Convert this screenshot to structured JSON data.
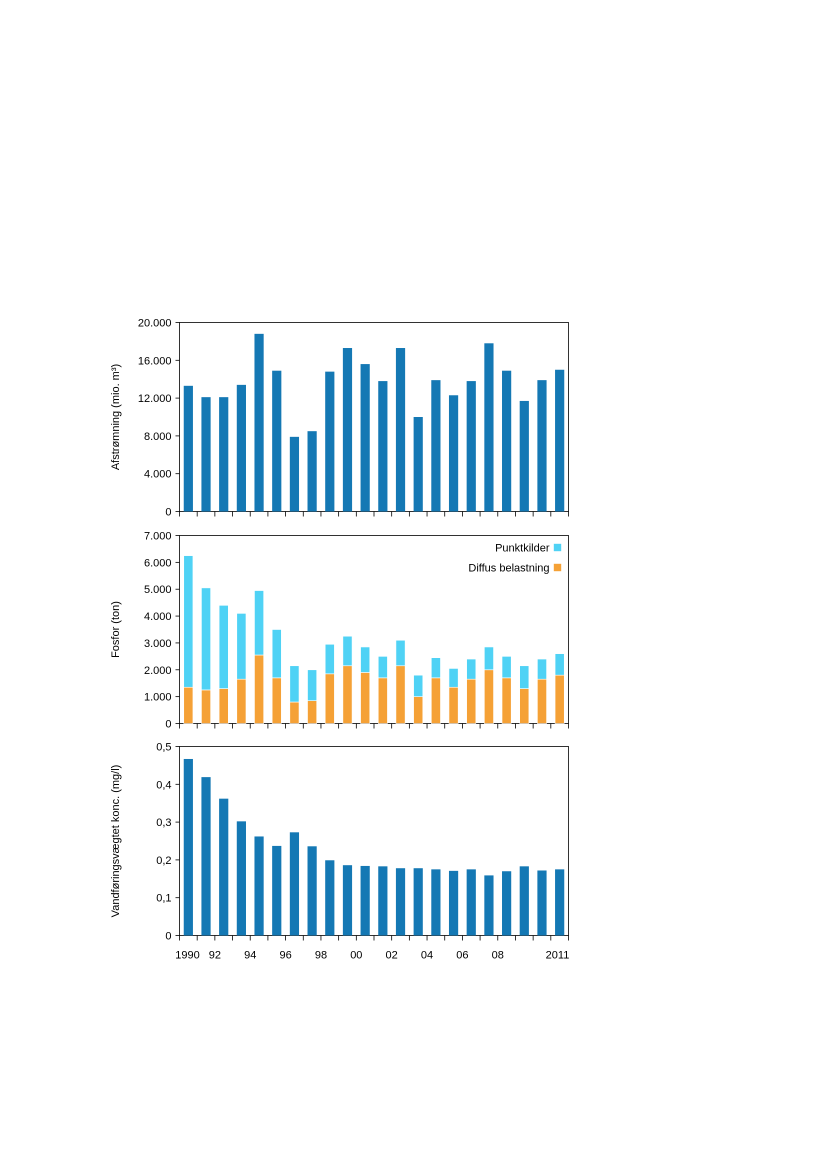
{
  "chart_data": [
    {
      "type": "bar",
      "ylabel": "Afstrømning (mio. m³)",
      "ylim": [
        0,
        20000
      ],
      "yticks": [
        "0",
        "4.000",
        "8.000",
        "12.000",
        "16.000",
        "20.000"
      ],
      "categories": [
        1990,
        1991,
        1992,
        1993,
        1994,
        1995,
        1996,
        1997,
        1998,
        1999,
        2000,
        2001,
        2002,
        2003,
        2004,
        2005,
        2006,
        2007,
        2008,
        2009,
        2010,
        2011
      ],
      "values": [
        13300,
        12100,
        12100,
        13400,
        18800,
        14900,
        7900,
        8500,
        14800,
        17300,
        15600,
        13800,
        17300,
        10000,
        13900,
        12300,
        13800,
        17800,
        14900,
        11700,
        13900,
        15000
      ],
      "color": "#1478b4"
    },
    {
      "type": "bar",
      "stacked": true,
      "ylabel": "Fosfor (ton)",
      "ylim": [
        0,
        7000
      ],
      "yticks": [
        "0",
        "1.000",
        "2.000",
        "3.000",
        "4.000",
        "5.000",
        "6.000",
        "7.000"
      ],
      "categories": [
        1990,
        1991,
        1992,
        1993,
        1994,
        1995,
        1996,
        1997,
        1998,
        1999,
        2000,
        2001,
        2002,
        2003,
        2004,
        2005,
        2006,
        2007,
        2008,
        2009,
        2010,
        2011
      ],
      "legend_position": "top-right",
      "series": [
        {
          "name": "Diffus belastning",
          "color": "#f5a136",
          "values": [
            1350,
            1250,
            1300,
            1650,
            2550,
            1700,
            800,
            850,
            1850,
            2150,
            1900,
            1700,
            2150,
            1000,
            1700,
            1350,
            1650,
            2000,
            1700,
            1300,
            1650,
            1800
          ]
        },
        {
          "name": "Punktkilder",
          "color": "#4fd2f5",
          "values": [
            4900,
            3800,
            3100,
            2450,
            2400,
            1800,
            1350,
            1150,
            1100,
            1100,
            950,
            800,
            950,
            800,
            750,
            700,
            750,
            850,
            800,
            850,
            750,
            800
          ]
        }
      ]
    },
    {
      "type": "bar",
      "ylabel": "Vandføringsvægtet konc. (mg/l)",
      "ylim": [
        0,
        0.5
      ],
      "yticks": [
        "0",
        "0,1",
        "0,2",
        "0,3",
        "0,4",
        "0,5"
      ],
      "categories": [
        1990,
        1991,
        1992,
        1993,
        1994,
        1995,
        1996,
        1997,
        1998,
        1999,
        2000,
        2001,
        2002,
        2003,
        2004,
        2005,
        2006,
        2007,
        2008,
        2009,
        2010,
        2011
      ],
      "values": [
        0.467,
        0.419,
        0.362,
        0.302,
        0.262,
        0.237,
        0.273,
        0.236,
        0.199,
        0.186,
        0.184,
        0.183,
        0.178,
        0.178,
        0.175,
        0.171,
        0.175,
        0.159,
        0.17,
        0.183,
        0.172,
        0.175
      ],
      "color": "#1478b4",
      "xtick_labels": [
        "1990",
        "92",
        "94",
        "96",
        "98",
        "00",
        "02",
        "04",
        "06",
        "08",
        "2011"
      ]
    }
  ]
}
